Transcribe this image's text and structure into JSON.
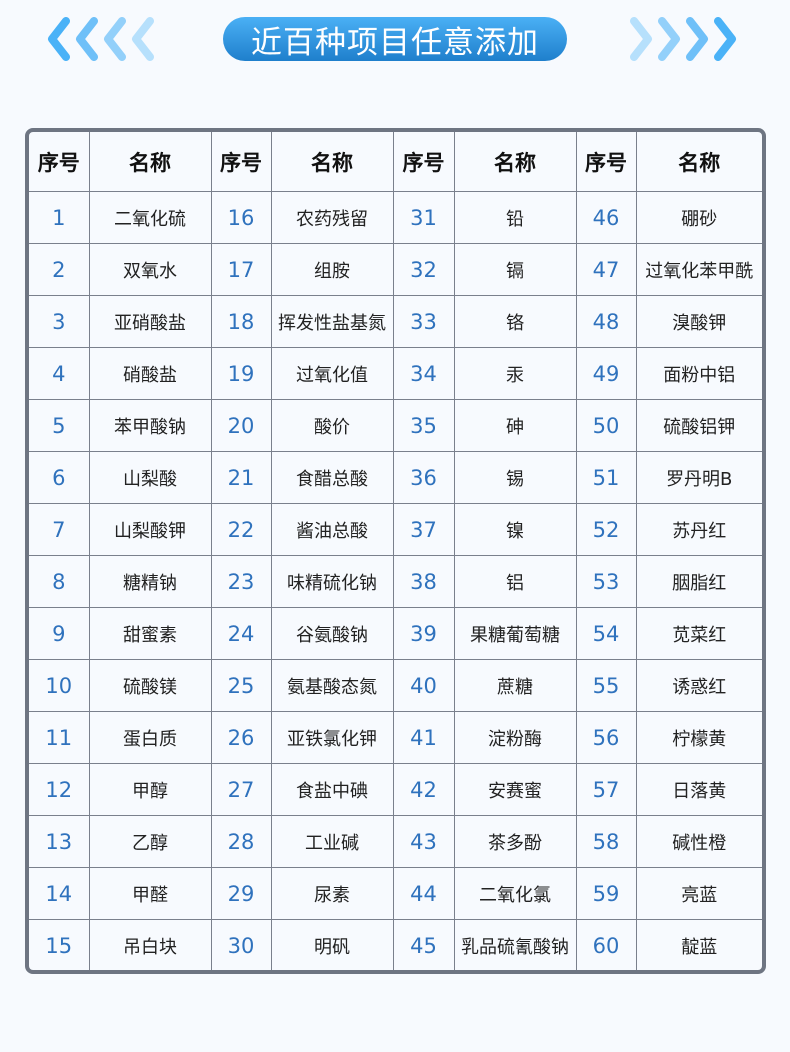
{
  "banner": {
    "title": "近百种项目任意添加",
    "accent_color": "#2a8ee0"
  },
  "icons": {
    "left": "chevrons-left-icon",
    "right": "chevrons-right-icon"
  },
  "table": {
    "headers": [
      "序号",
      "名称",
      "序号",
      "名称",
      "序号",
      "名称",
      "序号",
      "名称"
    ],
    "items": [
      "二氧化硫",
      "双氧水",
      "亚硝酸盐",
      "硝酸盐",
      "苯甲酸钠",
      "山梨酸",
      "山梨酸钾",
      "糖精钠",
      "甜蜜素",
      "硫酸镁",
      "蛋白质",
      "甲醇",
      "乙醇",
      "甲醛",
      "吊白块",
      "农药残留",
      "组胺",
      "挥发性盐基氮",
      "过氧化值",
      "酸价",
      "食醋总酸",
      "酱油总酸",
      "味精硫化钠",
      "谷氨酸钠",
      "氨基酸态氮",
      "亚铁氯化钾",
      "食盐中碘",
      "工业碱",
      "尿素",
      "明矾",
      "铅",
      "镉",
      "铬",
      "汞",
      "砷",
      "锡",
      "镍",
      "铝",
      "果糖葡萄糖",
      "蔗糖",
      "淀粉酶",
      "安赛蜜",
      "茶多酚",
      "二氧化氯",
      "乳品硫氰酸钠",
      "硼砂",
      "过氧化苯甲酰",
      "溴酸钾",
      "面粉中铝",
      "硫酸铝钾",
      "罗丹明B",
      "苏丹红",
      "胭脂红",
      "苋菜红",
      "诱惑红",
      "柠檬黄",
      "日落黄",
      "碱性橙",
      "亮蓝",
      "靛蓝"
    ],
    "numbers": [
      "1",
      "2",
      "3",
      "4",
      "5",
      "6",
      "7",
      "8",
      "9",
      "10",
      "11",
      "12",
      "13",
      "14",
      "15",
      "16",
      "17",
      "18",
      "19",
      "20",
      "21",
      "22",
      "23",
      "24",
      "25",
      "26",
      "27",
      "28",
      "29",
      "30",
      "31",
      "32",
      "33",
      "34",
      "35",
      "36",
      "37",
      "38",
      "39",
      "40",
      "41",
      "42",
      "43",
      "44",
      "45",
      "46",
      "47",
      "48",
      "49",
      "50",
      "51",
      "52",
      "53",
      "54",
      "55",
      "56",
      "57",
      "58",
      "59",
      "60"
    ]
  }
}
